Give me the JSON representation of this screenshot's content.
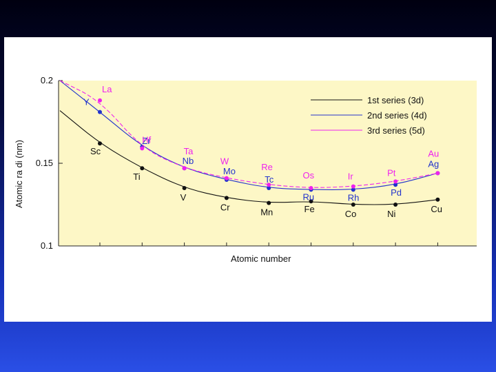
{
  "colors": {
    "panel": "#fdf7c6",
    "series1": "#111111",
    "series2": "#2233cc",
    "series3": "#ee22ee",
    "axis": "#222222"
  },
  "chart_data": {
    "type": "line",
    "title": "",
    "xlabel": "Atomic number",
    "ylabel": "Atomic ra di (nm)",
    "yticks": [
      "0.1",
      "0.15",
      "0.2"
    ],
    "ylim": [
      0.1,
      0.2
    ],
    "grid": false,
    "legend_position": "top-right",
    "series": [
      {
        "name": "1st series (3d)",
        "color": "#111111",
        "labels": [
          "Sc",
          "Ti",
          "V",
          "Cr",
          "Mn",
          "Fe",
          "Co",
          "Ni",
          "Cu"
        ],
        "values": [
          0.162,
          0.147,
          0.135,
          0.129,
          0.126,
          0.127,
          0.125,
          0.125,
          0.128
        ]
      },
      {
        "name": "2nd series (4d)",
        "color": "#2233cc",
        "labels": [
          "Y",
          "Zr",
          "Nb",
          "Mo",
          "Tc",
          "Ru",
          "Rh",
          "Pd",
          "Ag"
        ],
        "values": [
          0.181,
          0.16,
          0.147,
          0.14,
          0.135,
          0.134,
          0.134,
          0.137,
          0.144
        ]
      },
      {
        "name": "3rd series (5d)",
        "color": "#ee22ee",
        "labels": [
          "La",
          "Hf",
          "Ta",
          "W",
          "Re",
          "Os",
          "Ir",
          "Pt",
          "Au"
        ],
        "values": [
          0.188,
          0.159,
          0.147,
          0.141,
          0.137,
          0.135,
          0.136,
          0.139,
          0.144
        ]
      }
    ]
  }
}
